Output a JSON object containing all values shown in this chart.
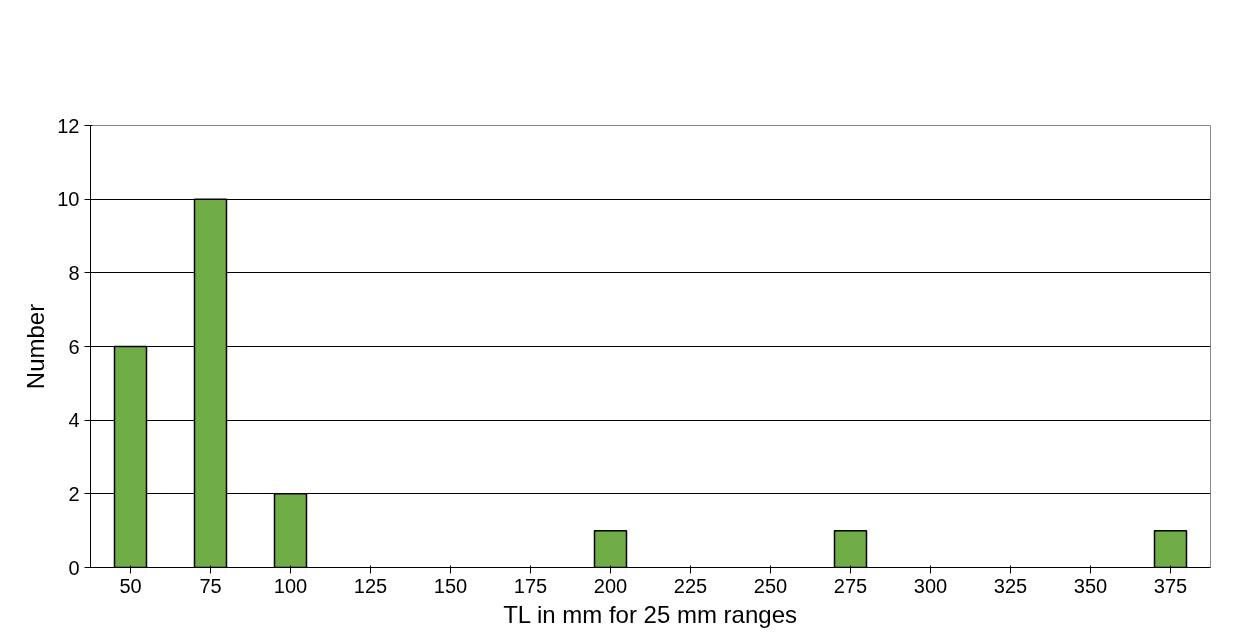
{
  "chart_data": {
    "type": "bar",
    "xlabel": "TL in mm for 25 mm ranges",
    "ylabel": "Number",
    "categories": [
      "50",
      "75",
      "100",
      "125",
      "150",
      "175",
      "200",
      "225",
      "250",
      "275",
      "300",
      "325",
      "350",
      "375"
    ],
    "values": [
      6,
      10,
      2,
      0,
      0,
      0,
      1,
      0,
      0,
      1,
      0,
      0,
      0,
      1
    ],
    "color": "#70ad47",
    "ylim": [
      0,
      12
    ],
    "yticks": [
      0,
      2,
      4,
      6,
      8,
      10,
      12
    ],
    "grid": "y"
  }
}
